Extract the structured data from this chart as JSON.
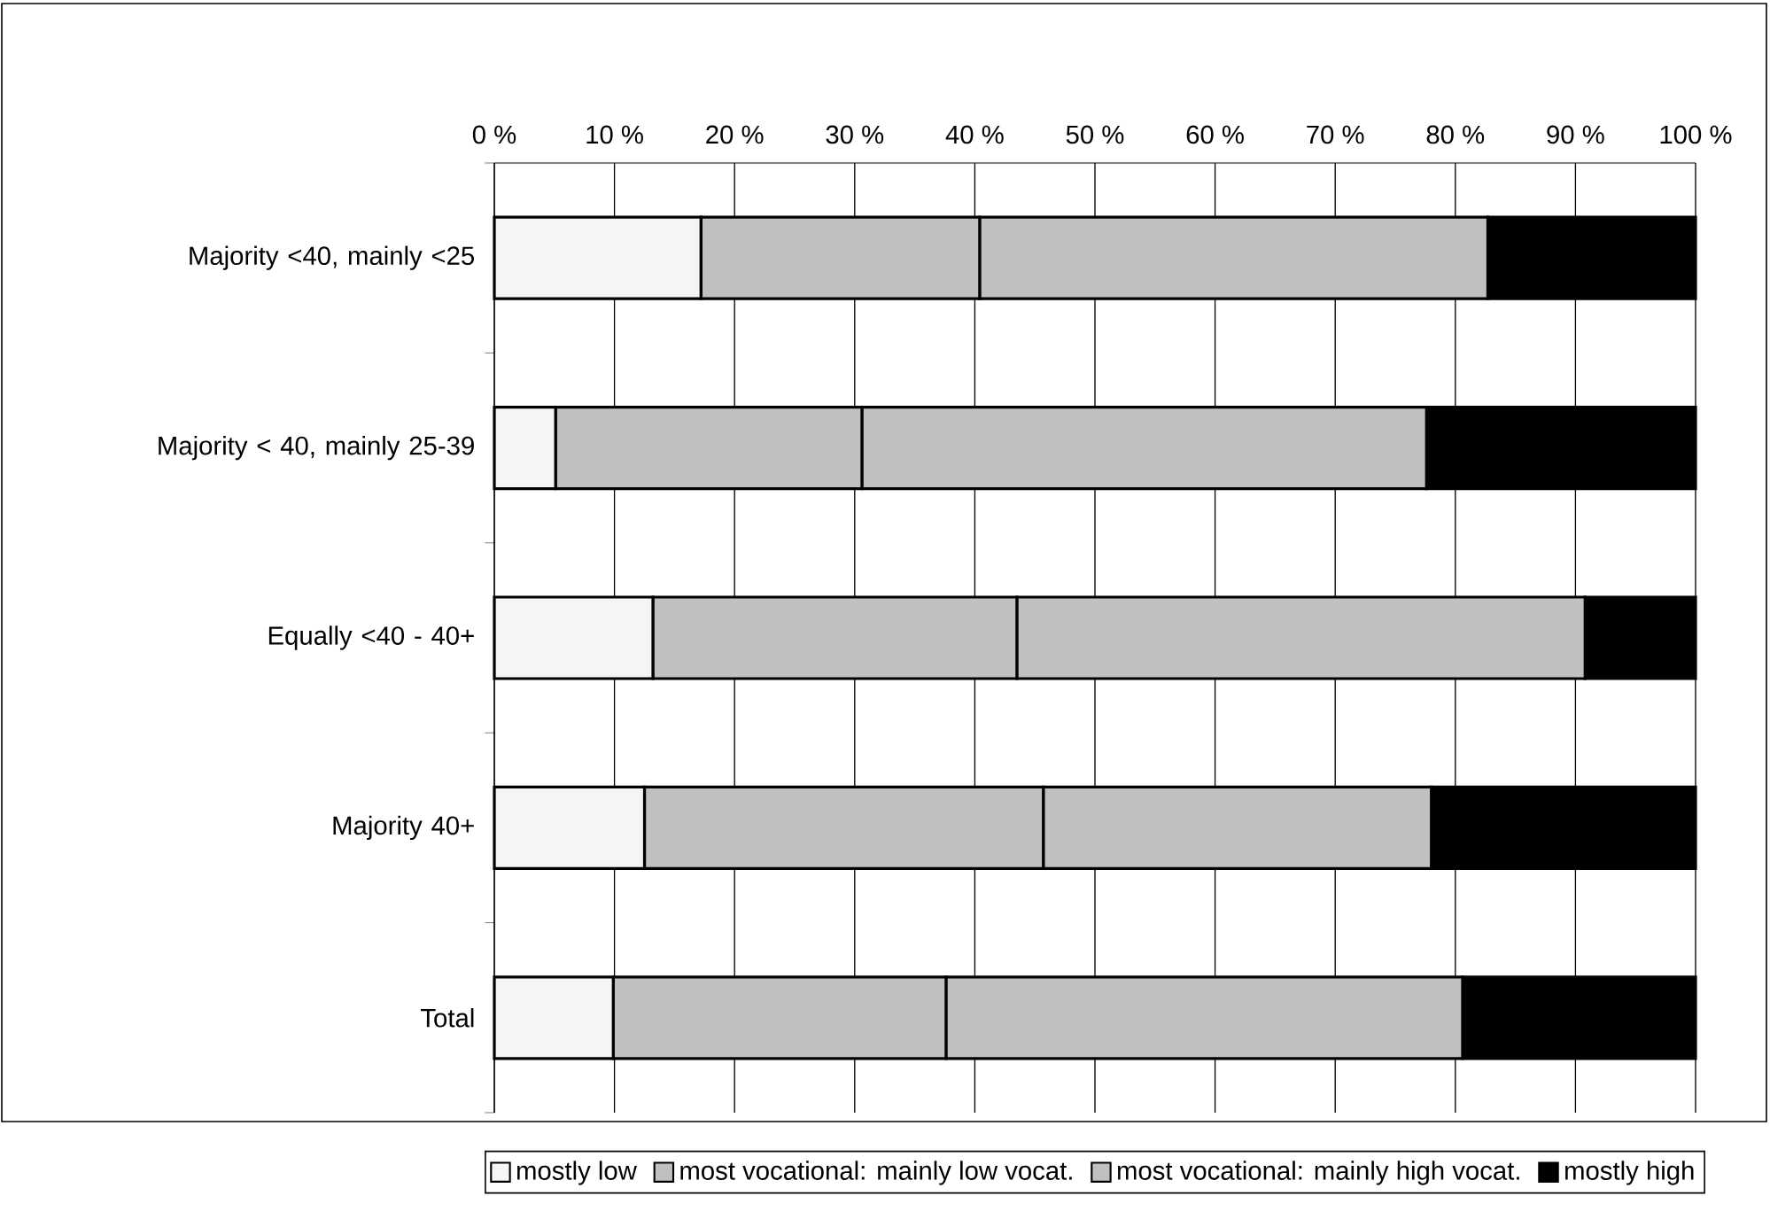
{
  "chart_data": {
    "type": "bar",
    "orientation": "horizontal",
    "stacked": true,
    "categories": [
      "Majority <40, mainly <25",
      "Majority < 40, mainly 25-39",
      "Equally <40 - 40+",
      "Majority 40+",
      "Total"
    ],
    "series": [
      {
        "name": "mostly low",
        "color": "#f5f5f5",
        "values": [
          17.2,
          5.1,
          13.2,
          12.5,
          9.9
        ]
      },
      {
        "name": "most vocational: mainly low vocat.",
        "color": "#c0c0c0",
        "values": [
          23.2,
          25.5,
          30.3,
          33.2,
          27.7
        ]
      },
      {
        "name": "most vocational: mainly high vocat.",
        "color": "#c0c0c0",
        "values": [
          42.3,
          47.0,
          47.3,
          32.3,
          43.0
        ]
      },
      {
        "name": "mostly high",
        "color": "#000000",
        "values": [
          17.3,
          22.4,
          9.2,
          22.0,
          19.4
        ]
      }
    ],
    "xlim": [
      0,
      100
    ],
    "xticks": [
      {
        "value": 0,
        "label": "0 %"
      },
      {
        "value": 10,
        "label": "10 %"
      },
      {
        "value": 20,
        "label": "20 %"
      },
      {
        "value": 30,
        "label": "30 %"
      },
      {
        "value": 40,
        "label": "40 %"
      },
      {
        "value": 50,
        "label": "50 %"
      },
      {
        "value": 60,
        "label": "60 %"
      },
      {
        "value": 70,
        "label": "70 %"
      },
      {
        "value": 80,
        "label": "80 %"
      },
      {
        "value": 90,
        "label": "90 %"
      },
      {
        "value": 100,
        "label": "100 %"
      }
    ],
    "grid": "x",
    "legend": "bottom"
  }
}
